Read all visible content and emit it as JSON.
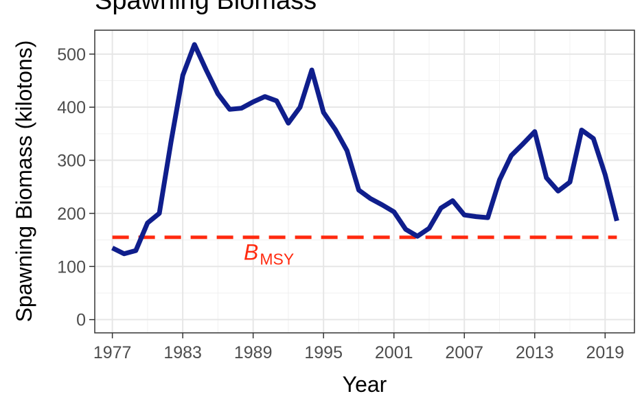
{
  "chart_data": {
    "type": "line",
    "title": "Spawning Biomass",
    "xlabel": "Year",
    "ylabel": "Spawning Biomass (kilotons)",
    "xlim": [
      1976.4,
      1971.6
    ],
    "ylim": [
      -25,
      545
    ],
    "x_ticks": [
      1977,
      1983,
      1989,
      1995,
      2001,
      2007,
      2013,
      2019
    ],
    "x_tick_labels": [
      "1977",
      "1983",
      "1989",
      "1995",
      "2001",
      "2007",
      "2013",
      "2019"
    ],
    "y_ticks": [
      0,
      100,
      200,
      300,
      400,
      500
    ],
    "y_tick_labels": [
      "0",
      "100",
      "200",
      "300",
      "400",
      "500"
    ],
    "grid": true,
    "series": [
      {
        "name": "",
        "color": "#0f1e8c",
        "x": [
          1977,
          1978,
          1979,
          1980,
          1981,
          1982,
          1983,
          1984,
          1985,
          1986,
          1987,
          1988,
          1989,
          1990,
          1991,
          1992,
          1993,
          1994,
          1995,
          1996,
          1997,
          1998,
          1999,
          2000,
          2001,
          2002,
          2003,
          2004,
          2005,
          2006,
          2007,
          2008,
          2009,
          2010,
          2011,
          2012,
          2013,
          2014,
          2015,
          2016,
          2017,
          2018,
          2019,
          2020
        ],
        "y": [
          135,
          124,
          130,
          182,
          200,
          335,
          460,
          518,
          470,
          425,
          396,
          398,
          410,
          420,
          412,
          370,
          400,
          470,
          390,
          358,
          318,
          244,
          228,
          216,
          203,
          170,
          157,
          172,
          210,
          224,
          197,
          194,
          192,
          263,
          309,
          331,
          354,
          267,
          242,
          259,
          357,
          341,
          273,
          186
        ]
      }
    ],
    "reference_line": {
      "y": 155,
      "color": "#ff2a0f",
      "style": "dashed",
      "label_main": "B",
      "label_sub": "MSY"
    }
  }
}
